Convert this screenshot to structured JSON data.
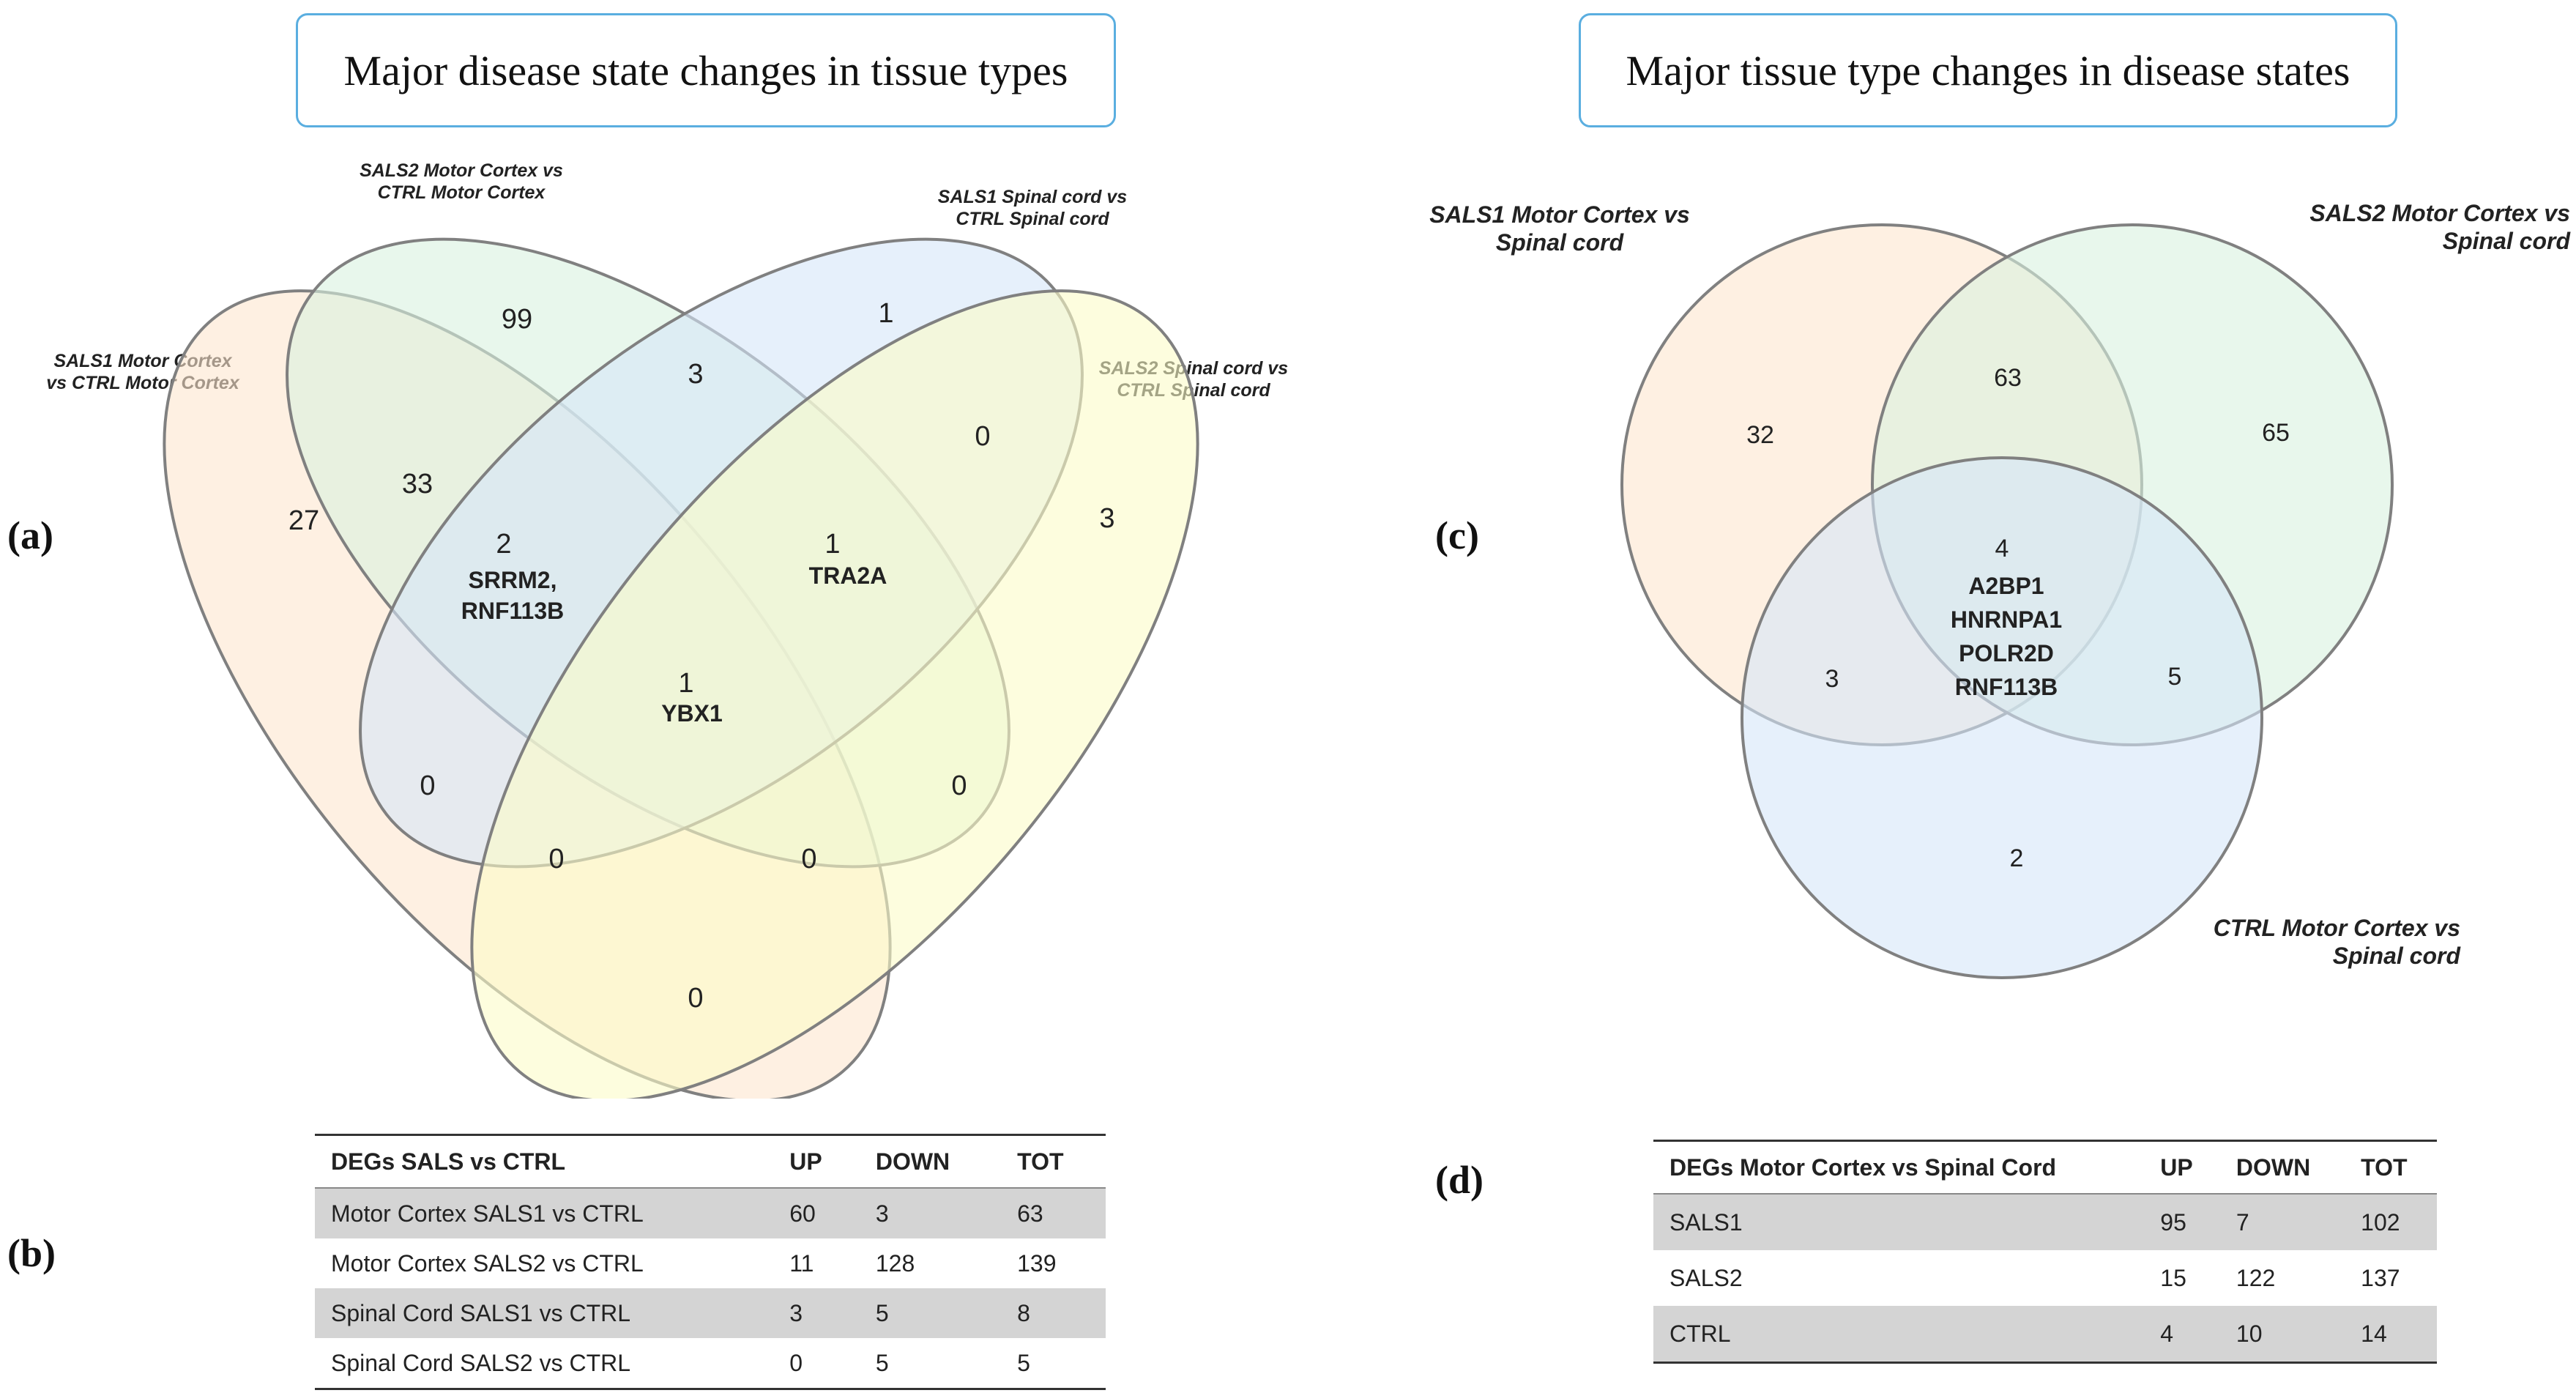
{
  "left_title": "Major disease state changes in tissue types",
  "right_title": "Major tissue type changes in disease states",
  "panel_labels": {
    "a": "(a)",
    "b": "(b)",
    "c": "(c)",
    "d": "(d)"
  },
  "venn4": {
    "sets": {
      "sals1_mc": {
        "line1": "SALS1 Motor Cortex",
        "line2": "vs  CTRL Motor Cortex",
        "color": "#fde6cf"
      },
      "sals2_mc": {
        "line1": "SALS2 Motor Cortex vs",
        "line2": "CTRL Motor Cortex",
        "color": "#d8f2df"
      },
      "sals1_sc": {
        "line1": "SALS1 Spinal  cord vs",
        "line2": "CTRL Spinal cord",
        "color": "#d6e6f8"
      },
      "sals2_sc": {
        "line1": "SALS2 Spinal cord vs",
        "line2": "CTRL Spinal cord",
        "color": "#fbfbc8"
      }
    },
    "regions": {
      "only_sals2_mc": "99",
      "only_sals1_sc": "1",
      "sals2mc_sals1sc": "3",
      "only_sals1_mc": "27",
      "sals1mc_sals2mc": "33",
      "sals1sc_sals2sc": "0",
      "only_sals2_sc": "3",
      "triple_a_count": "2",
      "triple_a_genes": [
        "SRRM2,",
        "RNF113B"
      ],
      "triple_b_count": "1",
      "triple_b_gene": "TRA2A",
      "center_count": "1",
      "center_gene": "YBX1",
      "left_lower": "0",
      "right_lower": "0",
      "lower_left_inner": "0",
      "lower_right_inner": "0",
      "bottom": "0"
    }
  },
  "venn3": {
    "sets": {
      "sals1": {
        "line1": "SALS1 Motor Cortex vs",
        "line2": "Spinal cord",
        "color": "#fde6cf"
      },
      "sals2": {
        "line1": "SALS2 Motor Cortex vs",
        "line2": "Spinal cord",
        "color": "#d8f2df"
      },
      "ctrl": {
        "line1": "CTRL Motor Cortex vs",
        "line2": "Spinal cord",
        "color": "#d6e6f8"
      }
    },
    "regions": {
      "only_sals1": "32",
      "sals1_sals2": "63",
      "only_sals2": "65",
      "sals1_ctrl": "3",
      "sals2_ctrl": "5",
      "only_ctrl": "2",
      "center_count": "4",
      "center_genes": [
        "A2BP1",
        "HNRNPA1",
        "POLR2D",
        "RNF113B"
      ]
    }
  },
  "table_b": {
    "headers": [
      "DEGs SALS vs CTRL",
      "UP",
      "DOWN",
      "TOT"
    ],
    "rows": [
      [
        "Motor Cortex SALS1 vs CTRL",
        "60",
        "3",
        "63"
      ],
      [
        "Motor Cortex SALS2 vs CTRL",
        "11",
        "128",
        "139"
      ],
      [
        "Spinal Cord SALS1 vs CTRL",
        "3",
        "5",
        "8"
      ],
      [
        "Spinal Cord SALS2 vs CTRL",
        "0",
        "5",
        "5"
      ]
    ]
  },
  "table_d": {
    "headers": [
      "DEGs Motor Cortex vs Spinal Cord",
      "UP",
      "DOWN",
      "TOT"
    ],
    "rows": [
      [
        "SALS1",
        "95",
        "7",
        "102"
      ],
      [
        "SALS2",
        "15",
        "122",
        "137"
      ],
      [
        "CTRL",
        "4",
        "10",
        "14"
      ]
    ]
  }
}
